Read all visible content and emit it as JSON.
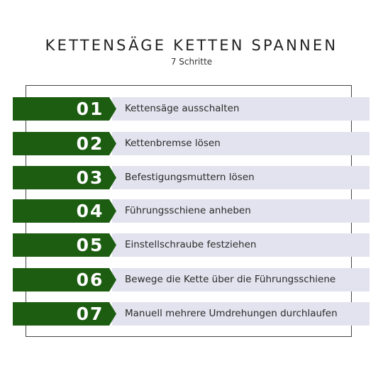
{
  "header": {
    "title": "KETTENSÄGE KETTEN SPANNEN",
    "subtitle": "7 Schritte"
  },
  "colors": {
    "badge": "#1c5d11",
    "row_background": "#e3e3ef",
    "frame": "#444444",
    "number_text": "#ffffff",
    "label_text": "#2a2a2a"
  },
  "steps": [
    {
      "number": "01",
      "label": "Kettensäge ausschalten"
    },
    {
      "number": "02",
      "label": "Kettenbremse lösen"
    },
    {
      "number": "03",
      "label": "Befestigungsmuttern lösen"
    },
    {
      "number": "04",
      "label": "Führungsschiene anheben"
    },
    {
      "number": "05",
      "label": "Einstellschraube festziehen"
    },
    {
      "number": "06",
      "label": "Bewege die Kette über die Führungsschiene"
    },
    {
      "number": "07",
      "label": "Manuell mehrere Umdrehungen durchlaufen"
    }
  ]
}
